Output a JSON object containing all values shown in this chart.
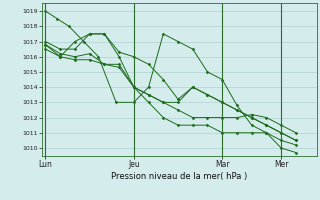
{
  "title": "",
  "xlabel": "Pression niveau de la mer( hPa )",
  "bg_color": "#d4ecec",
  "grid_color": "#aacaca",
  "line_color": "#1a6b1a",
  "dark_green": "#2d6e2d",
  "ylim": [
    1009.5,
    1019.5
  ],
  "yticks": [
    1010,
    1011,
    1012,
    1013,
    1014,
    1015,
    1016,
    1017,
    1018,
    1019
  ],
  "xtick_labels": [
    "Lun",
    "Jeu",
    "Mar",
    "Mer"
  ],
  "xtick_pos": [
    0,
    3,
    6,
    8
  ],
  "vlines": [
    0,
    3,
    6,
    8
  ],
  "xlim": [
    -0.1,
    9.2
  ],
  "series": [
    {
      "x": [
        0,
        0.4,
        0.8,
        1.3,
        1.8,
        2.4,
        3.0,
        3.5,
        4.0,
        4.5,
        5.0,
        5.5,
        6.0,
        6.5,
        7.0,
        7.5,
        8.0,
        8.5
      ],
      "y": [
        1019.0,
        1018.5,
        1018.0,
        1017.0,
        1016.0,
        1013.0,
        1013.0,
        1014.0,
        1017.5,
        1017.0,
        1016.5,
        1015.0,
        1014.5,
        1012.8,
        1011.5,
        1011.0,
        1010.0,
        1009.7
      ]
    },
    {
      "x": [
        0,
        0.5,
        1.0,
        1.5,
        2.0,
        2.5,
        3.0,
        3.5,
        4.0,
        4.5,
        5.0,
        5.5,
        6.0,
        6.5,
        7.0,
        7.5,
        8.0,
        8.5
      ],
      "y": [
        1016.8,
        1016.0,
        1017.0,
        1017.5,
        1017.5,
        1016.3,
        1016.0,
        1015.5,
        1014.5,
        1013.2,
        1014.0,
        1013.5,
        1013.0,
        1012.5,
        1012.0,
        1011.5,
        1011.0,
        1010.5
      ]
    },
    {
      "x": [
        0,
        0.5,
        1.0,
        1.5,
        2.0,
        2.5,
        3.0,
        3.5,
        4.0,
        4.5,
        5.0,
        5.5,
        6.0,
        6.5,
        7.0,
        7.5,
        8.0,
        8.5
      ],
      "y": [
        1017.0,
        1016.5,
        1016.5,
        1017.5,
        1017.5,
        1016.0,
        1014.0,
        1013.5,
        1013.0,
        1013.0,
        1014.0,
        1013.5,
        1013.0,
        1012.5,
        1012.0,
        1011.5,
        1011.0,
        1010.5
      ]
    },
    {
      "x": [
        0,
        0.5,
        1.0,
        1.5,
        2.0,
        2.5,
        3.0,
        3.5,
        4.0,
        4.5,
        5.0,
        5.5,
        6.0,
        6.5,
        7.0,
        7.5,
        8.0,
        8.5
      ],
      "y": [
        1016.8,
        1016.2,
        1016.0,
        1016.2,
        1015.5,
        1015.5,
        1014.0,
        1013.0,
        1012.0,
        1011.5,
        1011.5,
        1011.5,
        1011.0,
        1011.0,
        1011.0,
        1011.0,
        1010.5,
        1010.2
      ]
    },
    {
      "x": [
        0,
        0.5,
        1.0,
        1.5,
        2.0,
        2.5,
        3.0,
        3.5,
        4.0,
        4.5,
        5.0,
        5.5,
        6.0,
        6.5,
        7.0,
        7.5,
        8.0,
        8.5
      ],
      "y": [
        1016.5,
        1016.0,
        1015.8,
        1015.8,
        1015.5,
        1015.3,
        1014.0,
        1013.5,
        1013.0,
        1012.5,
        1012.0,
        1012.0,
        1012.0,
        1012.0,
        1012.2,
        1012.0,
        1011.5,
        1011.0
      ]
    }
  ]
}
